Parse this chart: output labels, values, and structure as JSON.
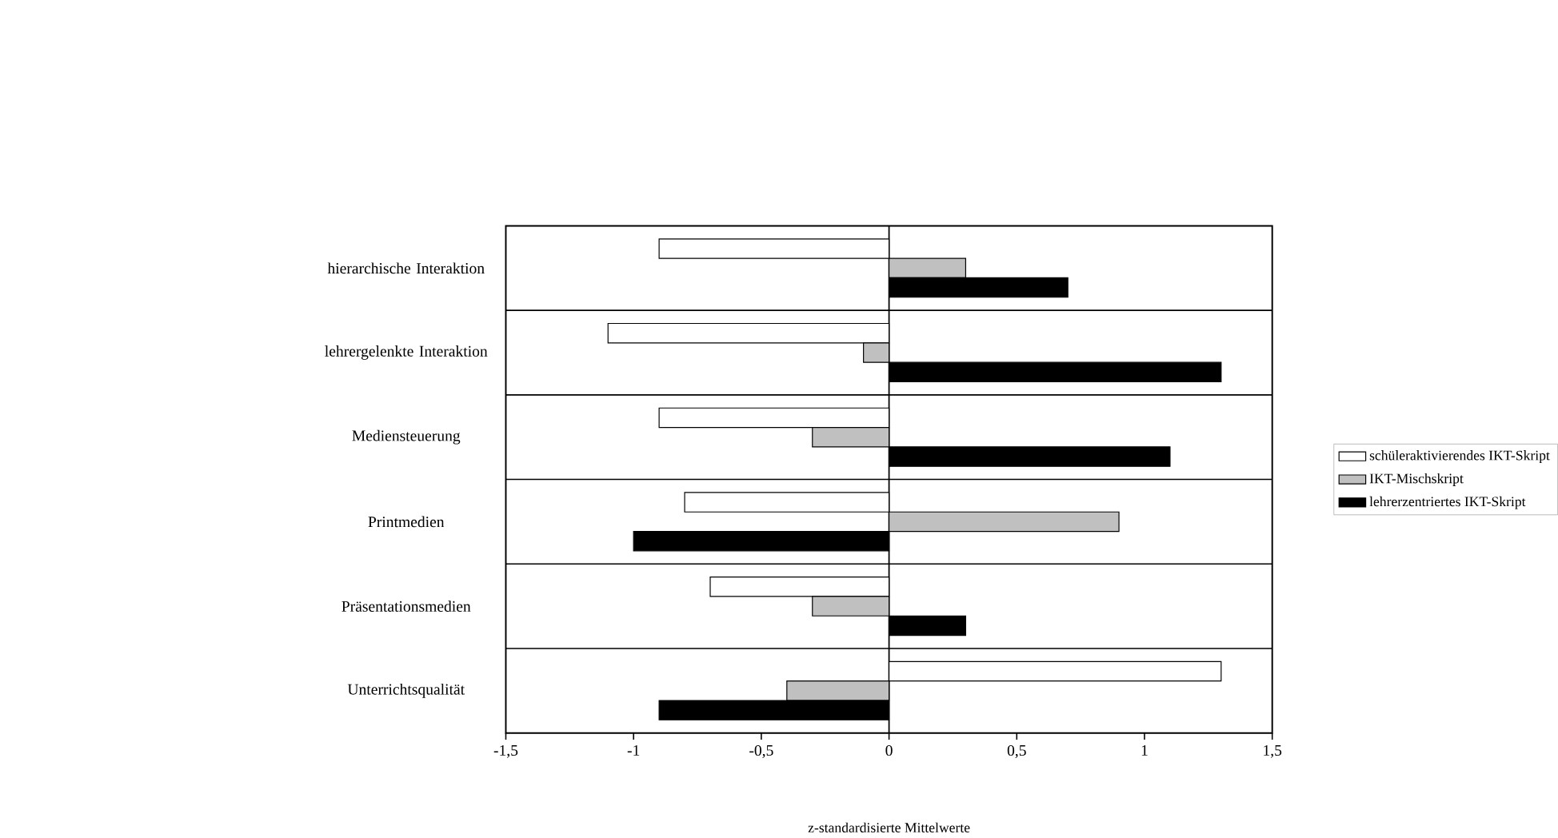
{
  "chart_data": {
    "type": "bar",
    "orientation": "horizontal",
    "categories": [
      "hierarchische Interaktion",
      "lehrergelenkte Interaktion",
      "Mediensteuerung",
      "Printmedien",
      "Präsentationsmedien",
      "Unterrichtsqualität"
    ],
    "series": [
      {
        "name": "schüleraktivierendes IKT-Skript",
        "color": "#ffffff",
        "values": [
          -0.9,
          -1.1,
          -0.9,
          -0.8,
          -0.7,
          1.3
        ]
      },
      {
        "name": "IKT-Mischskript",
        "color": "#c0c0c0",
        "values": [
          0.3,
          -0.1,
          -0.3,
          0.9,
          -0.3,
          -0.4
        ]
      },
      {
        "name": "lehrerzentriertes IKT-Skript",
        "color": "#000000",
        "values": [
          0.7,
          1.3,
          1.1,
          -1.0,
          0.3,
          -0.9
        ]
      }
    ],
    "xlabel": "z-standardisierte Mittelwerte",
    "xlim": [
      -1.5,
      1.5
    ],
    "xticks": [
      {
        "value": -1.5,
        "label": "-1,5"
      },
      {
        "value": -1,
        "label": "-1"
      },
      {
        "value": -0.5,
        "label": "-0,5"
      },
      {
        "value": 0,
        "label": "0"
      },
      {
        "value": 0.5,
        "label": "0,5"
      },
      {
        "value": 1,
        "label": "1"
      },
      {
        "value": 1.5,
        "label": "1,5"
      }
    ],
    "grid": "y",
    "legend": "right"
  }
}
